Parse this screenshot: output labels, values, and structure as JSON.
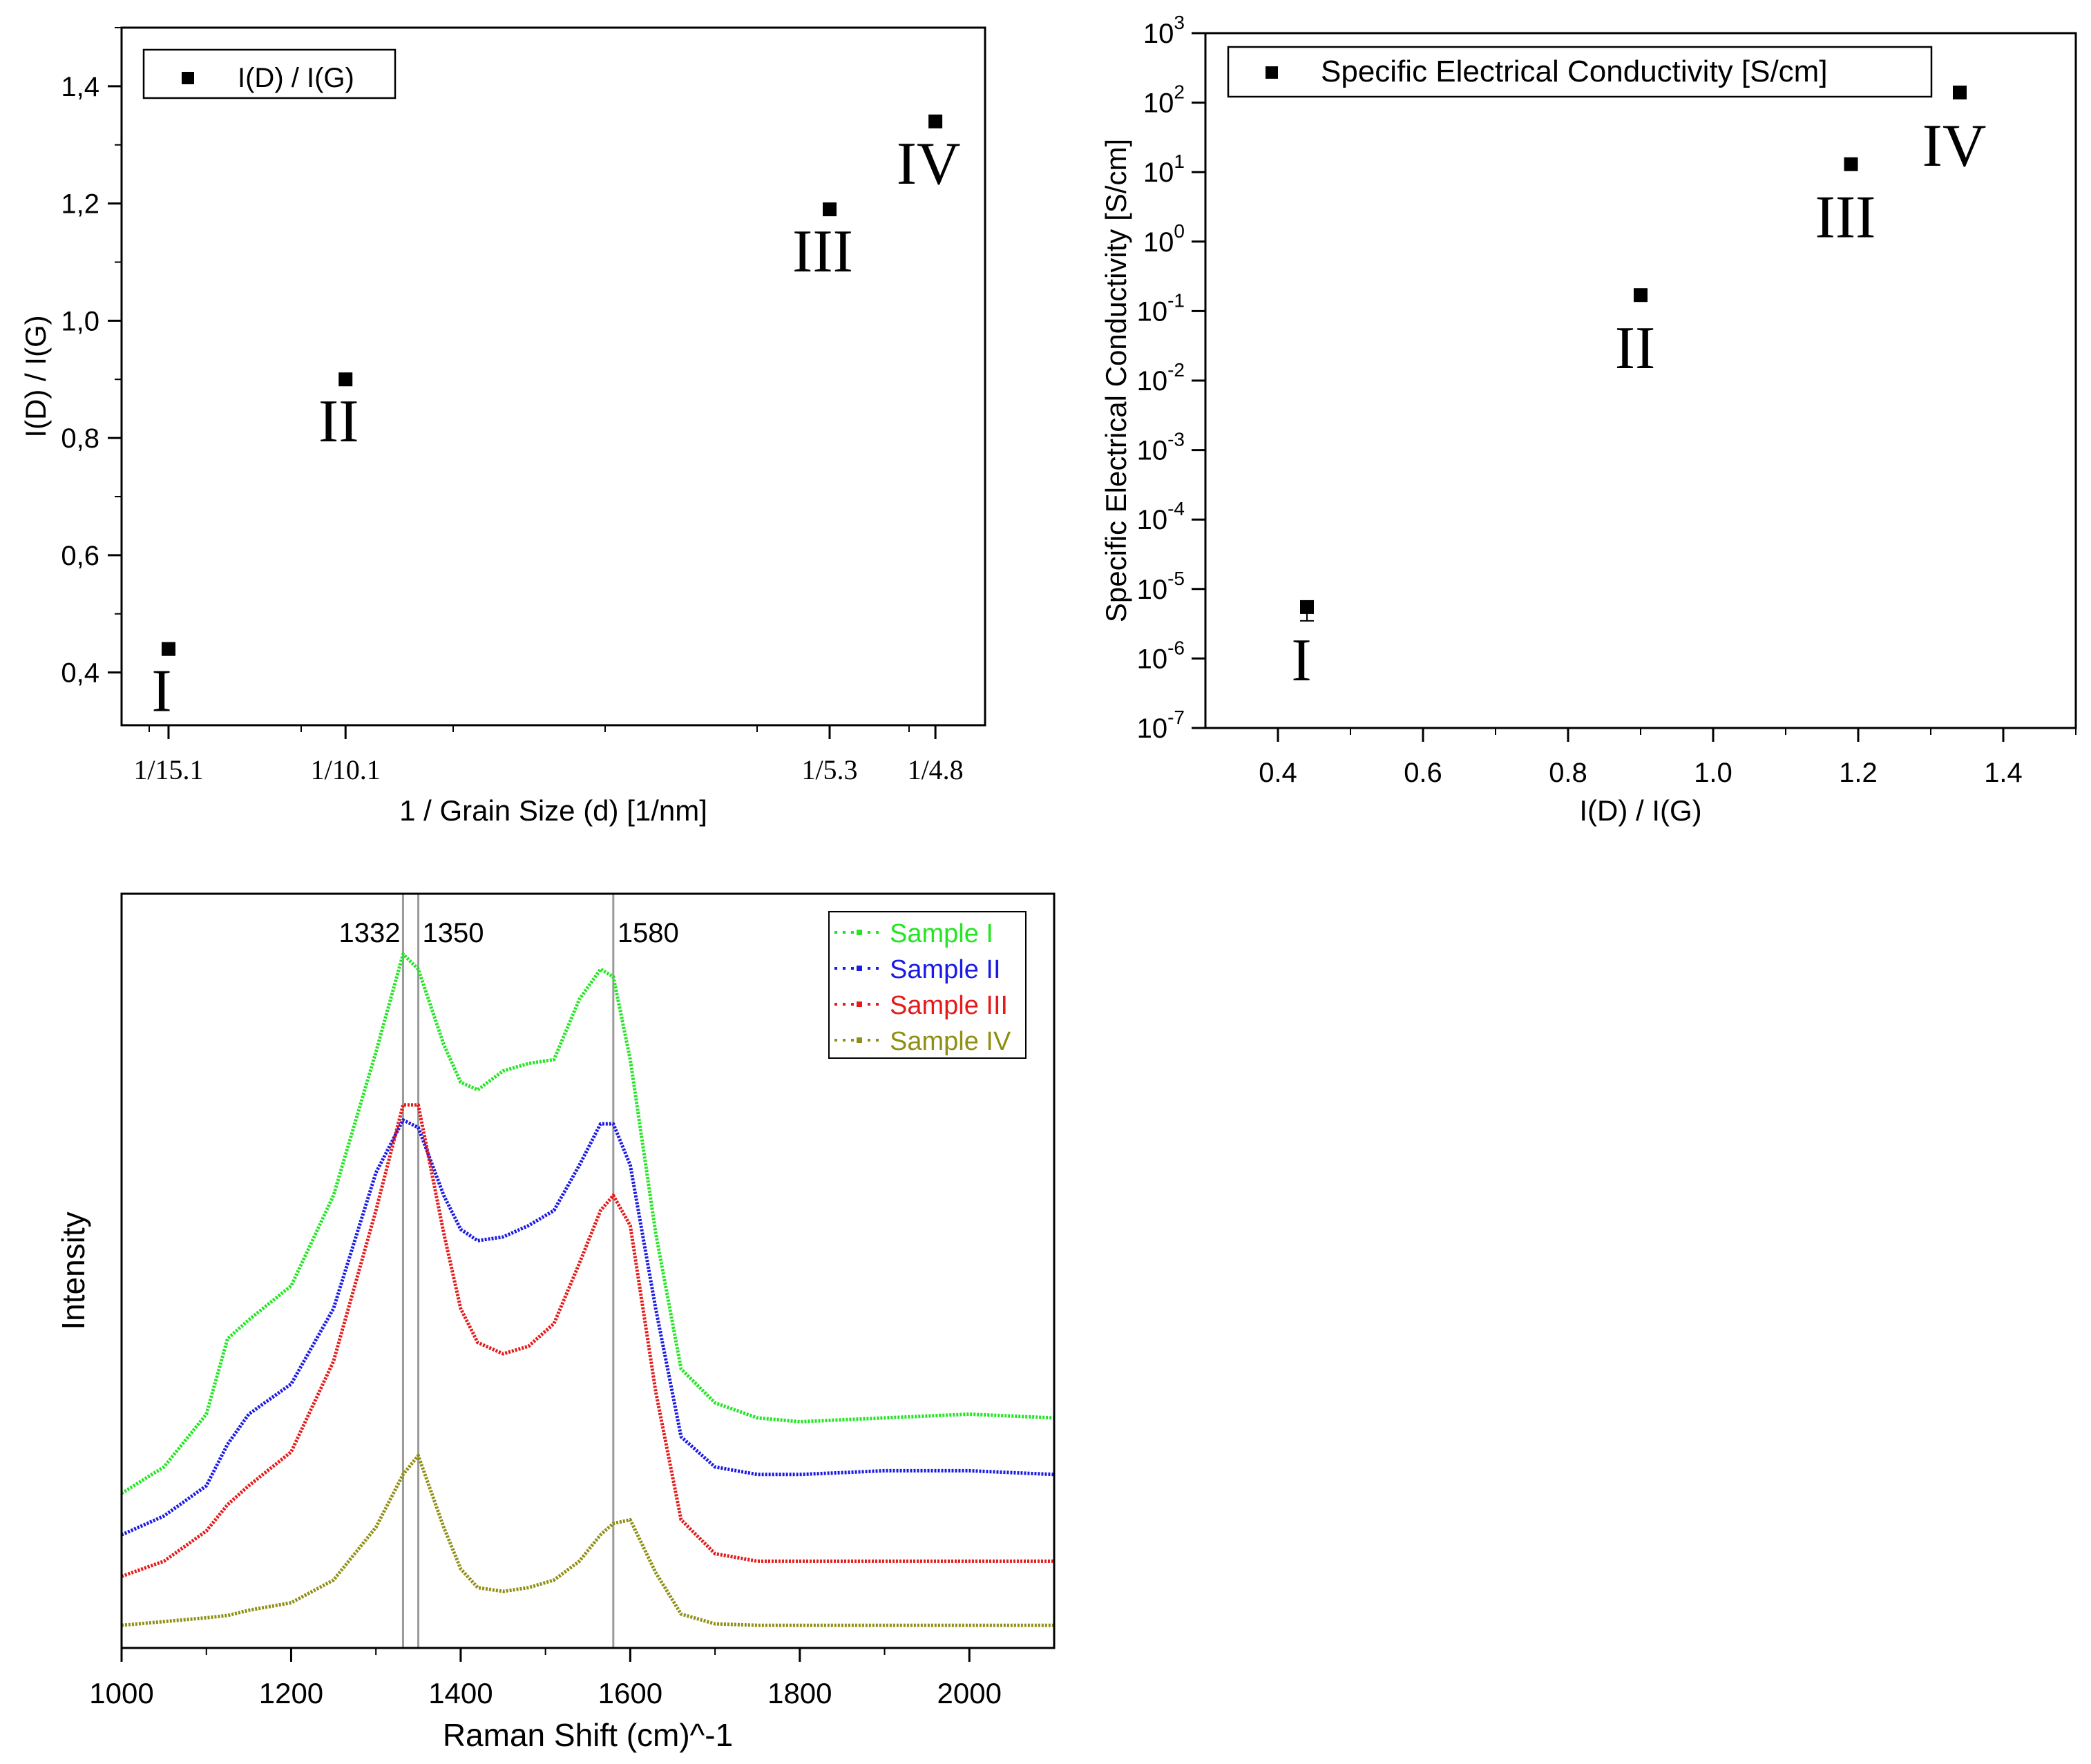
{
  "colors": {
    "axis": "#000000",
    "sample1": "#22e622",
    "sample2": "#1a1ae6",
    "sample3": "#e61a1a",
    "sample4": "#8f8f14",
    "refline": "#9a9a9a"
  },
  "chart_data": [
    {
      "type": "scatter",
      "title": "",
      "xlabel": "1 / Grain Size (d) [1/nm]",
      "ylabel": "I(D) / I(G)",
      "xlim": [
        0.0575,
        0.2175
      ],
      "ylim": [
        0.31,
        1.5
      ],
      "xticks": [
        {
          "value": 0.0662,
          "label": "1/15.1"
        },
        {
          "value": 0.099,
          "label": "1/10.1"
        },
        {
          "value": 0.1887,
          "label": "1/5.3"
        },
        {
          "value": 0.2083,
          "label": "1/4.8"
        }
      ],
      "yticks": [
        {
          "value": 0.4,
          "label": "0,4"
        },
        {
          "value": 0.6,
          "label": "0,6"
        },
        {
          "value": 0.8,
          "label": "0,8"
        },
        {
          "value": 1.0,
          "label": "1,0"
        },
        {
          "value": 1.2,
          "label": "1,2"
        },
        {
          "value": 1.4,
          "label": "1,4"
        }
      ],
      "legend": {
        "position": "top-left",
        "entries": [
          "I(D) / I(G)"
        ]
      },
      "series": [
        {
          "name": "I(D) / I(G)",
          "points": [
            {
              "x": 0.0662,
              "y": 0.44,
              "label": "I"
            },
            {
              "x": 0.099,
              "y": 0.9,
              "label": "II"
            },
            {
              "x": 0.1887,
              "y": 1.19,
              "label": "III"
            },
            {
              "x": 0.2083,
              "y": 1.34,
              "label": "IV"
            }
          ]
        }
      ]
    },
    {
      "type": "scatter",
      "title": "",
      "xlabel": "I(D) / I(G)",
      "ylabel": "Specific Electrical Conductivity [S/cm]",
      "xlim": [
        0.3,
        1.5
      ],
      "ylim_log10": [
        -7,
        3
      ],
      "yscale": "log",
      "xticks": [
        {
          "value": 0.4,
          "label": "0.4"
        },
        {
          "value": 0.6,
          "label": "0.6"
        },
        {
          "value": 0.8,
          "label": "0.8"
        },
        {
          "value": 1.0,
          "label": "1.0"
        },
        {
          "value": 1.2,
          "label": "1.2"
        },
        {
          "value": 1.4,
          "label": "1.4"
        }
      ],
      "yticks": [
        {
          "value": -7,
          "label": "-7"
        },
        {
          "value": -6,
          "label": "-6"
        },
        {
          "value": -5,
          "label": "-5"
        },
        {
          "value": -4,
          "label": "-4"
        },
        {
          "value": -3,
          "label": "-3"
        },
        {
          "value": -2,
          "label": "-2"
        },
        {
          "value": -1,
          "label": "-1"
        },
        {
          "value": 0,
          "label": "0"
        },
        {
          "value": 1,
          "label": "1"
        },
        {
          "value": 2,
          "label": "2"
        },
        {
          "value": 3,
          "label": "3"
        }
      ],
      "tick_base": "10",
      "legend": {
        "position": "top-left",
        "entries": [
          "Specific Electrical Conductivity [S/cm]"
        ]
      },
      "series": [
        {
          "name": "Specific Electrical Conductivity [S/cm]",
          "points": [
            {
              "x": 0.44,
              "y": 5.5e-06,
              "label": "I"
            },
            {
              "x": 0.9,
              "y": 0.17,
              "label": "II"
            },
            {
              "x": 1.19,
              "y": 13,
              "label": "III"
            },
            {
              "x": 1.34,
              "y": 140,
              "label": "IV"
            }
          ]
        }
      ]
    },
    {
      "type": "line",
      "title": "",
      "xlabel": "Raman Shift (cm)^-1",
      "ylabel": "Intensity",
      "xlim": [
        1000,
        2100
      ],
      "ylim": [
        0,
        100
      ],
      "xticks": [
        {
          "value": 1000,
          "label": "1000"
        },
        {
          "value": 1200,
          "label": "1200"
        },
        {
          "value": 1400,
          "label": "1400"
        },
        {
          "value": 1600,
          "label": "1600"
        },
        {
          "value": 1800,
          "label": "1800"
        },
        {
          "value": 2000,
          "label": "2000"
        }
      ],
      "reference_lines": [
        {
          "x": 1332,
          "label": "1332"
        },
        {
          "x": 1350,
          "label": "1350"
        },
        {
          "x": 1580,
          "label": "1580"
        }
      ],
      "legend": {
        "position": "top-right",
        "entries": [
          "Sample I",
          "Sample II",
          "Sample III",
          "Sample IV"
        ]
      },
      "x": [
        1000,
        1050,
        1100,
        1125,
        1150,
        1200,
        1250,
        1300,
        1332,
        1350,
        1380,
        1400,
        1420,
        1450,
        1480,
        1510,
        1540,
        1565,
        1580,
        1600,
        1630,
        1660,
        1700,
        1750,
        1800,
        1900,
        2000,
        2100
      ],
      "series": [
        {
          "name": "Sample I",
          "color": "sample1",
          "values": [
            20.5,
            24,
            31,
            41,
            43.5,
            48,
            60,
            79,
            92,
            90,
            80,
            75,
            74,
            76.5,
            77.5,
            78,
            86,
            90,
            89,
            78,
            55,
            37,
            32.5,
            30.5,
            30,
            30.5,
            31,
            30.5
          ]
        },
        {
          "name": "Sample II",
          "color": "sample2",
          "values": [
            15,
            17.5,
            21.5,
            27,
            31,
            35,
            45,
            63,
            70,
            69,
            60,
            55.5,
            54,
            54.5,
            56,
            58,
            64,
            69.5,
            69.5,
            64,
            45,
            28,
            24,
            23,
            23,
            23.5,
            23.5,
            23
          ]
        },
        {
          "name": "Sample III",
          "color": "sample3",
          "values": [
            9.5,
            11.5,
            15.5,
            19,
            21.5,
            26,
            38,
            58,
            72,
            72,
            55,
            45,
            40.5,
            39,
            40,
            43,
            51,
            58,
            60,
            56,
            34,
            17,
            12.5,
            11.5,
            11.5,
            11.5,
            11.5,
            11.5
          ]
        },
        {
          "name": "Sample IV",
          "color": "sample4",
          "values": [
            3,
            3.5,
            4,
            4.3,
            5,
            6,
            9,
            16,
            23,
            25.5,
            16,
            10.5,
            8,
            7.5,
            8,
            9,
            11.5,
            15,
            16.5,
            17,
            10,
            4.5,
            3.2,
            3,
            3,
            3,
            3,
            3
          ]
        }
      ]
    }
  ]
}
